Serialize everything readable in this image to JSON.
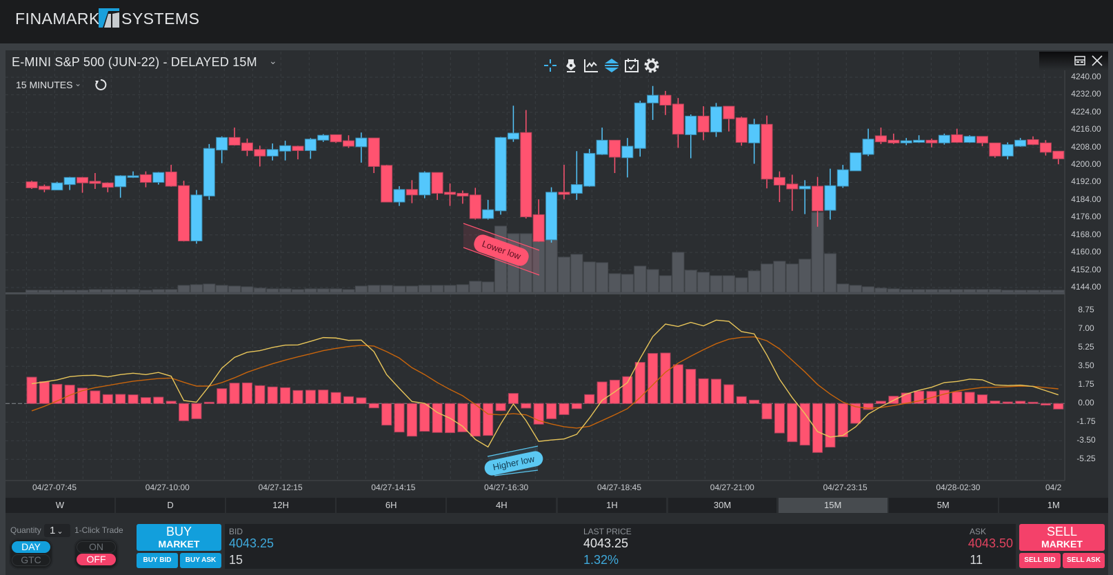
{
  "app": {
    "brand_left": "FINAMARK",
    "brand_right": "SYSTEMS"
  },
  "chart_header": {
    "title": "E-MINI S&P 500 (JUN-22) - DELAYED 15M",
    "timeframe": "15 MINUTES"
  },
  "toolbar": {
    "icons": [
      "crosshair-icon",
      "pen-tool-icon",
      "line-chart-icon",
      "layers-icon",
      "calendar-icon",
      "gear-icon"
    ]
  },
  "window_controls": {
    "icons": [
      "panel-layout-icon",
      "close-icon"
    ]
  },
  "price_axis": [
    "4240.00",
    "4232.00",
    "4224.00",
    "4216.00",
    "4208.00",
    "4200.00",
    "4192.00",
    "4184.00",
    "4176.00",
    "4168.00",
    "4160.00",
    "4152.00",
    "4144.00"
  ],
  "macd_axis": [
    "8.75",
    "7.00",
    "5.25",
    "3.50",
    "1.75",
    "0.00",
    "-1.75",
    "-3.50",
    "-5.25"
  ],
  "time_axis": [
    "04/27-07:45",
    "04/27-10:00",
    "04/27-12:15",
    "04/27-14:15",
    "04/27-16:30",
    "04/27-18:45",
    "04/27-21:00",
    "04/27-23:15",
    "04/28-02:30",
    "04/2"
  ],
  "timeframes": [
    "W",
    "D",
    "12H",
    "6H",
    "4H",
    "1H",
    "30M",
    "15M",
    "5M",
    "1M"
  ],
  "selected_timeframe": "15M",
  "annotations": [
    {
      "text": "Lower low",
      "color": "#ff5370"
    },
    {
      "text": "Higher low",
      "color": "#5bc8f2"
    }
  ],
  "trade": {
    "quantity_label": "Quantity",
    "quantity": "1",
    "one_click_label": "1-Click Trade",
    "day": "DAY",
    "gtc": "GTC",
    "on": "ON",
    "off": "OFF",
    "buy_line1": "BUY",
    "buy_line2": "MARKET",
    "buy_bid": "BUY BID",
    "buy_ask": "BUY ASK",
    "sell_line1": "SELL",
    "sell_line2": "MARKET",
    "sell_bid": "SELL BID",
    "sell_ask": "SELL ASK",
    "bid_label": "BID",
    "bid_price": "4043.25",
    "bid_size": "15",
    "last_label": "LAST PRICE",
    "last_price": "4043.25",
    "change_pct": "1.32%",
    "ask_label": "ASK",
    "ask_price": "4043.50",
    "ask_size": "11"
  },
  "colors": {
    "up": "#54c7fc",
    "down": "#ff5370",
    "macd_line": "#e9c65a",
    "signal_line": "#c9650c",
    "histogram": "#ff5370",
    "volume": "#53575d",
    "buy": "#129fdc",
    "sell": "#f4416a"
  },
  "chart_data": {
    "type": "candlestick",
    "ylim": [
      4144,
      4240
    ],
    "ohlc_fields": [
      "open",
      "high",
      "low",
      "close"
    ],
    "ohlc": [
      [
        4192.25,
        4192.75,
        4189,
        4189.5
      ],
      [
        4190.25,
        4191,
        4187.5,
        4188.75
      ],
      [
        4188.5,
        4192.25,
        4188.5,
        4191.75
      ],
      [
        4191,
        4194.5,
        4188.5,
        4194.25
      ],
      [
        4194.25,
        4194.5,
        4187.25,
        4191.75
      ],
      [
        4192.5,
        4196.25,
        4189,
        4191.5
      ],
      [
        4191.75,
        4192,
        4187.5,
        4189.75
      ],
      [
        4190,
        4195.25,
        4185,
        4195
      ],
      [
        4194.25,
        4197,
        4194,
        4195
      ],
      [
        4195.5,
        4197,
        4189.75,
        4192
      ],
      [
        4192,
        4196.75,
        4191,
        4196.5
      ],
      [
        4196.75,
        4200,
        4190,
        4190.25
      ],
      [
        4190.5,
        4192.75,
        4165,
        4165.25
      ],
      [
        4165.25,
        4188.5,
        4164,
        4186.25
      ],
      [
        4185.75,
        4209.5,
        4184,
        4207.5
      ],
      [
        4206.75,
        4213,
        4200.75,
        4212.5
      ],
      [
        4212.5,
        4217,
        4208.75,
        4209
      ],
      [
        4210,
        4212,
        4204,
        4206.5
      ],
      [
        4207,
        4208.75,
        4199.25,
        4204
      ],
      [
        4204,
        4209.75,
        4202,
        4207
      ],
      [
        4206.25,
        4211,
        4202,
        4208.75
      ],
      [
        4208.5,
        4208.75,
        4202.5,
        4206.5
      ],
      [
        4206.5,
        4212.25,
        4202.75,
        4211.75
      ],
      [
        4211.25,
        4214,
        4210.5,
        4213.5
      ],
      [
        4213.75,
        4213.75,
        4210,
        4210.5
      ],
      [
        4211,
        4213.5,
        4207.75,
        4208.5
      ],
      [
        4208.25,
        4214.75,
        4201,
        4212.25
      ],
      [
        4212.25,
        4212.25,
        4196.25,
        4199.25
      ],
      [
        4199.75,
        4200,
        4183,
        4183
      ],
      [
        4183,
        4190.25,
        4181.25,
        4188.75
      ],
      [
        4188.75,
        4193,
        4182.5,
        4186.25
      ],
      [
        4186.25,
        4197,
        4184.75,
        4196.5
      ],
      [
        4196.5,
        4196.5,
        4184,
        4187
      ],
      [
        4187.5,
        4191.5,
        4181.25,
        4186.5
      ],
      [
        4187,
        4188.25,
        4182.25,
        4185.75
      ],
      [
        4186.25,
        4189.5,
        4175,
        4175.5
      ],
      [
        4175.5,
        4184,
        4175,
        4179.5
      ],
      [
        4179,
        4212.75,
        4177.25,
        4212.5
      ],
      [
        4211.75,
        4227,
        4210.5,
        4214.5
      ],
      [
        4214.75,
        4225,
        4175.5,
        4176.25
      ],
      [
        4177.25,
        4184.25,
        4164.75,
        4165
      ],
      [
        4165.75,
        4189.75,
        4164.5,
        4187.5
      ],
      [
        4187.5,
        4200,
        4184.25,
        4186.5
      ],
      [
        4187,
        4206.25,
        4184,
        4191
      ],
      [
        4190.25,
        4207.25,
        4190,
        4205.25
      ],
      [
        4204.75,
        4217,
        4204.5,
        4211.25
      ],
      [
        4211.25,
        4211.25,
        4196.25,
        4203.5
      ],
      [
        4203.25,
        4212.25,
        4194.25,
        4208.5
      ],
      [
        4207.5,
        4229.25,
        4203.75,
        4228.25
      ],
      [
        4228.25,
        4236,
        4220.5,
        4231.75
      ],
      [
        4231.75,
        4233.75,
        4222.75,
        4227.25
      ],
      [
        4227.75,
        4230.5,
        4207.75,
        4214
      ],
      [
        4213.75,
        4223,
        4203,
        4222.25
      ],
      [
        4222.25,
        4226.75,
        4211.25,
        4215
      ],
      [
        4215,
        4228.25,
        4212.75,
        4226.5
      ],
      [
        4226.75,
        4226.75,
        4215.25,
        4221
      ],
      [
        4221.5,
        4222,
        4208.75,
        4210.25
      ],
      [
        4210,
        4221,
        4200.5,
        4218.5
      ],
      [
        4218.5,
        4222.5,
        4189.25,
        4193.5
      ],
      [
        4194.25,
        4197,
        4183,
        4190.75
      ],
      [
        4191.25,
        4195.5,
        4179,
        4189
      ],
      [
        4189,
        4193,
        4177.5,
        4190.25
      ],
      [
        4190.25,
        4194.5,
        4171.75,
        4179
      ],
      [
        4179.25,
        4198.25,
        4175,
        4190.5
      ],
      [
        4190.25,
        4200,
        4189.5,
        4197.75
      ],
      [
        4197.25,
        4205.5,
        4197.25,
        4205.5
      ],
      [
        4204.75,
        4216.5,
        4204,
        4211.75
      ],
      [
        4213.25,
        4217,
        4209.5,
        4210.5
      ],
      [
        4211.25,
        4214.25,
        4209.5,
        4210
      ],
      [
        4210,
        4212.25,
        4209,
        4211
      ],
      [
        4210.25,
        4213.5,
        4210,
        4211.25
      ],
      [
        4211.25,
        4212,
        4208,
        4210
      ],
      [
        4210,
        4214.25,
        4209.25,
        4213.5
      ],
      [
        4213.75,
        4216.5,
        4210,
        4210.25
      ],
      [
        4210.25,
        4213.5,
        4210,
        4213
      ],
      [
        4213,
        4213,
        4208.5,
        4210
      ],
      [
        4210,
        4210,
        4203.25,
        4204
      ],
      [
        4204,
        4210.25,
        4202.5,
        4209.25
      ],
      [
        4208.5,
        4212.25,
        4208.25,
        4211.25
      ],
      [
        4211.5,
        4213,
        4209,
        4209.25
      ],
      [
        4210,
        4211.25,
        4204.25,
        4205.75
      ],
      [
        4206.25,
        4206.25,
        4200.25,
        4202.75
      ]
    ],
    "volume_relative": [
      3,
      3,
      3,
      3,
      3,
      4,
      4,
      4,
      4,
      3,
      4,
      4,
      10,
      11,
      12,
      10,
      9,
      8,
      6,
      5,
      5,
      4,
      5,
      5,
      5,
      4,
      9,
      10,
      10,
      9,
      9,
      10,
      10,
      10,
      11,
      16,
      15,
      96,
      85,
      85,
      77,
      76,
      51,
      55,
      44,
      43,
      27,
      26,
      38,
      33,
      24,
      58,
      32,
      29,
      24,
      24,
      21,
      31,
      41,
      45,
      41,
      48,
      116,
      56,
      12,
      10,
      8,
      6,
      5,
      4,
      4,
      4,
      4,
      4,
      4,
      4,
      4,
      3,
      3,
      3,
      3,
      3
    ],
    "macd": {
      "ylim": [
        -5.25,
        8.75
      ],
      "macd": [
        1.86,
        2.03,
        2.22,
        2.53,
        2.63,
        2.66,
        2.51,
        2.72,
        2.85,
        2.72,
        2.92,
        2.57,
        0.28,
        0.13,
        1.64,
        3.33,
        4.34,
        4.82,
        4.97,
        5.27,
        5.49,
        5.51,
        5.85,
        6.2,
        6.16,
        5.94,
        5.96,
        4.88,
        2.72,
        1.43,
        0.19,
        0.02,
        -0.84,
        -1.38,
        -2.14,
        -3.37,
        -4.08,
        -1.92,
        -0.04,
        -1.6,
        -3.56,
        -3.43,
        -3.33,
        -2.89,
        -1.38,
        0.3,
        1.1,
        1.97,
        4.23,
        6.29,
        7.47,
        7.24,
        7.63,
        7.3,
        7.84,
        7.73,
        6.76,
        6.55,
        4.56,
        2.29,
        0.56,
        -0.95,
        -2.64,
        -3.15,
        -3.0,
        -2.2,
        -0.99,
        -0.3,
        0.3,
        0.89,
        1.25,
        1.53,
        1.97,
        2.07,
        2.29,
        2.23,
        1.75,
        1.69,
        1.73,
        1.6,
        1.21,
        0.82
      ],
      "signal": [
        -0.69,
        -0.26,
        0.24,
        0.78,
        1.21,
        1.49,
        1.69,
        1.9,
        2.1,
        2.23,
        2.35,
        2.4,
        2.0,
        1.64,
        1.64,
        1.97,
        2.42,
        2.94,
        3.35,
        3.74,
        4.08,
        4.39,
        4.67,
        4.97,
        5.18,
        5.36,
        5.47,
        5.4,
        4.88,
        4.28,
        3.37,
        2.72,
        1.97,
        1.32,
        0.73,
        -0.09,
        -0.99,
        -1.06,
        -0.95,
        -1.06,
        -1.6,
        -1.92,
        -2.18,
        -2.31,
        -2.14,
        -1.6,
        -1.06,
        -0.48,
        0.56,
        1.75,
        2.94,
        3.8,
        4.45,
        5.06,
        5.62,
        6.05,
        6.22,
        6.27,
        5.9,
        5.14,
        4.06,
        2.98,
        1.79,
        0.89,
        0.13,
        -0.3,
        -0.45,
        -0.37,
        -0.19,
        0.02,
        0.24,
        0.56,
        0.89,
        1.17,
        1.36,
        1.51,
        1.53,
        1.58,
        1.64,
        1.62,
        1.49,
        1.38
      ],
      "histogram": [
        2.48,
        2.07,
        1.81,
        1.73,
        1.45,
        1.19,
        0.84,
        0.86,
        0.82,
        0.56,
        0.6,
        0.22,
        -1.62,
        -1.43,
        0.13,
        1.4,
        1.92,
        1.94,
        1.68,
        1.56,
        1.49,
        1.23,
        1.25,
        1.27,
        1.04,
        0.65,
        0.54,
        -0.41,
        -2.03,
        -2.68,
        -3.07,
        -2.61,
        -2.72,
        -2.74,
        -2.66,
        -3.07,
        -3.0,
        -0.67,
        0.95,
        -0.43,
        -1.94,
        -1.43,
        -1.04,
        -0.48,
        0.84,
        2.03,
        2.2,
        2.53,
        3.87,
        4.71,
        4.75,
        3.65,
        3.22,
        2.33,
        2.29,
        1.77,
        0.65,
        0.32,
        -1.45,
        -2.77,
        -3.59,
        -3.91,
        -4.6,
        -4.1,
        -3.13,
        -1.86,
        -0.56,
        0.22,
        0.69,
        0.99,
        1.17,
        1.14,
        1.25,
        1.1,
        1.06,
        0.82,
        0.24,
        0.15,
        0.22,
        0.13,
        -0.15,
        -0.52
      ]
    },
    "grid": true
  }
}
